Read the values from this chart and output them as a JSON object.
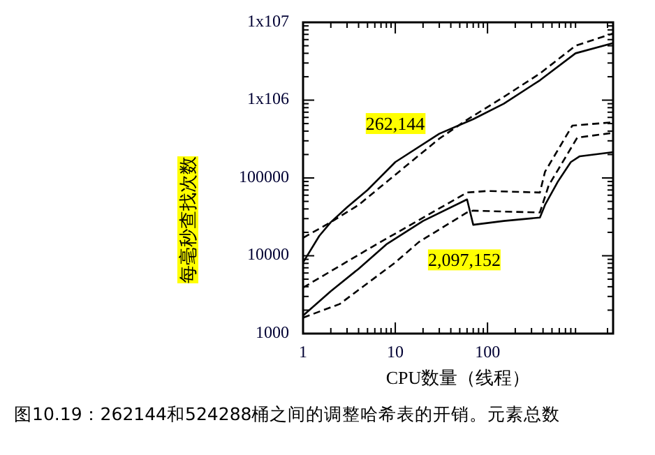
{
  "chart_data": {
    "type": "line",
    "xlabel": "CPU数量（线程）",
    "ylabel": "每毫秒查找次数",
    "log": "xy",
    "xlim": [
      1,
      2300
    ],
    "ylim": [
      1000,
      10000000
    ],
    "xticks": [
      1,
      10,
      100
    ],
    "yticks": [
      1000,
      10000,
      100000,
      {
        "value": 1000000,
        "label": "1x106"
      },
      {
        "value": 10000000,
        "label": "1x107"
      }
    ],
    "grid": false,
    "series": [
      {
        "color": "#000000",
        "line_style": "solid",
        "x": [
          1,
          1.5,
          2,
          3,
          5,
          10,
          30,
          70,
          150,
          370,
          900,
          2300
        ],
        "values": [
          8200,
          18000,
          27000,
          42000,
          70000,
          160000,
          370000,
          570000,
          900000,
          1800000,
          4000000,
          5400000
        ]
      },
      {
        "color": "#000000",
        "line_style": "dashed",
        "x": [
          1,
          2,
          4,
          10,
          30,
          60,
          150,
          370,
          900,
          2300
        ],
        "values": [
          17000,
          27000,
          45000,
          110000,
          320000,
          560000,
          1100000,
          2200000,
          5000000,
          7200000
        ]
      },
      {
        "color": "#000000",
        "line_style": "solid",
        "x": [
          1,
          2,
          4,
          8,
          20,
          60,
          70,
          150,
          370,
          420,
          580,
          800,
          1000,
          2300
        ],
        "values": [
          1700,
          3500,
          6800,
          14000,
          28000,
          53000,
          25000,
          28000,
          31000,
          45000,
          90000,
          160000,
          190000,
          215000
        ]
      },
      {
        "color": "#000000",
        "line_style": "dashed",
        "x": [
          1,
          2.5,
          10,
          18,
          60,
          70,
          150,
          370,
          460,
          940,
          2300
        ],
        "values": [
          1600,
          2400,
          8200,
          15000,
          36000,
          38000,
          37000,
          36000,
          80000,
          330000,
          380000
        ]
      },
      {
        "color": "#000000",
        "line_style": "dashed",
        "x": [
          1,
          5.6,
          60,
          100,
          370,
          420,
          830,
          2300
        ],
        "values": [
          3900,
          13000,
          65000,
          68000,
          65000,
          120000,
          470000,
          520000
        ]
      }
    ],
    "annotations": [
      {
        "text": "262,144",
        "x": 10,
        "y": 470000
      },
      "2,097,152",
      "图10.19：262144和524288桶之间的调整哈希表的开销。元素总数"
    ]
  }
}
